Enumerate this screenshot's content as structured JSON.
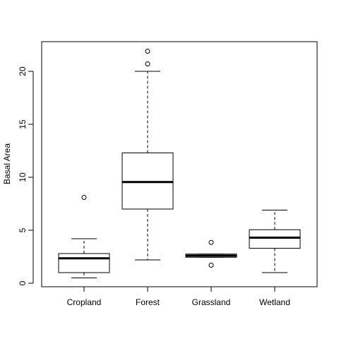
{
  "chart_data": {
    "type": "box",
    "title": "",
    "xlabel": "",
    "ylabel": "Basal Area",
    "ylim": [
      -0.4,
      22.9
    ],
    "yticks": [
      0,
      5,
      10,
      15,
      20
    ],
    "ytick_labels": [
      "0",
      "5",
      "10",
      "15",
      "20"
    ],
    "grid": false,
    "categories": [
      "Cropland",
      "Forest",
      "Grassland",
      "Wetland"
    ],
    "boxes": [
      {
        "category": "Cropland",
        "whisker_low": 0.5,
        "q1": 1.0,
        "median": 2.35,
        "q3": 2.8,
        "whisker_high": 4.2,
        "outliers": [
          8.1
        ]
      },
      {
        "category": "Forest",
        "whisker_low": 2.2,
        "q1": 7.0,
        "median": 9.55,
        "q3": 12.3,
        "whisker_high": 20.0,
        "outliers": [
          20.7,
          21.9
        ]
      },
      {
        "category": "Grassland",
        "whisker_low": 2.45,
        "q1": 2.45,
        "median": 2.6,
        "q3": 2.75,
        "whisker_high": 2.75,
        "outliers": [
          3.85,
          1.7
        ]
      },
      {
        "category": "Wetland",
        "whisker_low": 1.0,
        "q1": 3.3,
        "median": 4.3,
        "q3": 5.05,
        "whisker_high": 6.9,
        "outliers": []
      }
    ]
  }
}
